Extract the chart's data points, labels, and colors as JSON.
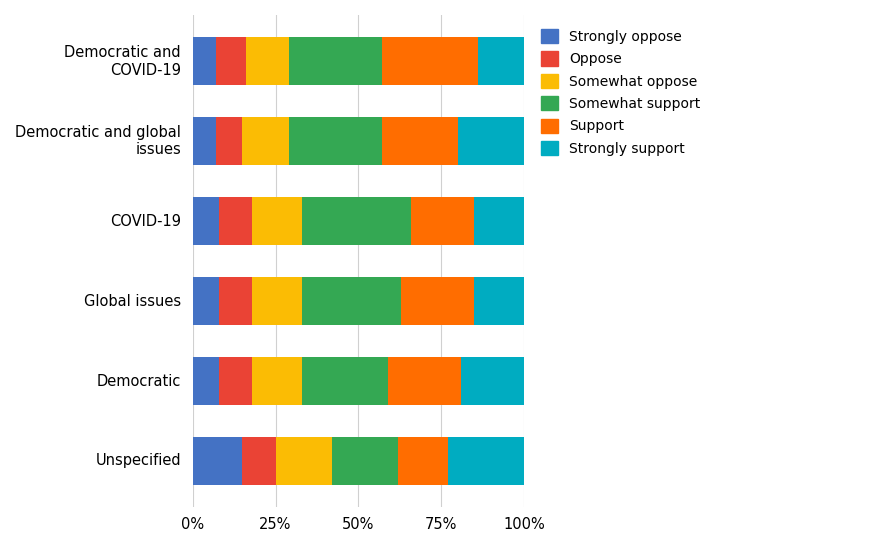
{
  "categories": [
    "Unspecified",
    "Democratic",
    "Global issues",
    "COVID-19",
    "Democratic and global\nissues",
    "Democratic and\nCOVID-19"
  ],
  "segments": {
    "Strongly oppose": [
      15,
      8,
      8,
      8,
      7,
      7
    ],
    "Oppose": [
      10,
      10,
      10,
      10,
      8,
      9
    ],
    "Somewhat oppose": [
      17,
      15,
      15,
      15,
      14,
      13
    ],
    "Somewhat support": [
      20,
      26,
      30,
      33,
      28,
      28
    ],
    "Support": [
      15,
      22,
      22,
      19,
      23,
      29
    ],
    "Strongly support": [
      23,
      19,
      15,
      15,
      20,
      14
    ]
  },
  "colors": {
    "Strongly oppose": "#4472C4",
    "Oppose": "#EA4335",
    "Somewhat oppose": "#FBBC04",
    "Somewhat support": "#34A853",
    "Support": "#FF6D00",
    "Strongly support": "#00ACC1"
  },
  "background_color": "#ffffff",
  "grid_color": "#d0d0d0",
  "bar_height": 0.6,
  "figsize": [
    8.85,
    5.47
  ],
  "dpi": 100
}
